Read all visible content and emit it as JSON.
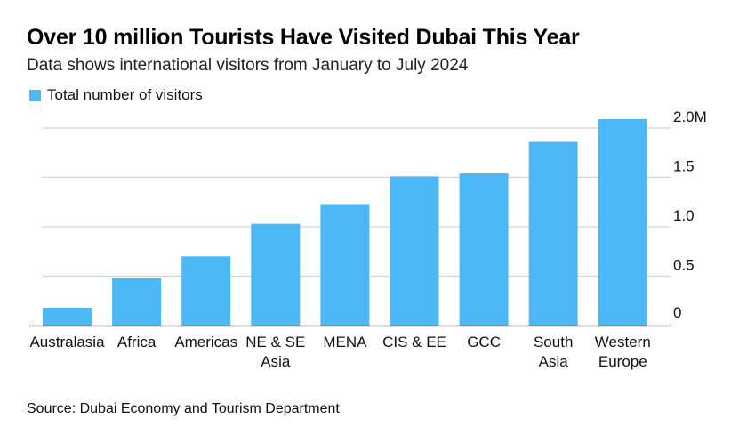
{
  "title": "Over 10 million Tourists Have Visited Dubai This Year",
  "subtitle": "Data shows international visitors from January to July 2024",
  "legend": {
    "label": "Total number of visitors",
    "color": "#4cb8f5"
  },
  "source": "Source: Dubai Economy and Tourism Department",
  "chart_data": {
    "type": "bar",
    "title": "Over 10 million Tourists Have Visited Dubai This Year",
    "subtitle": "Data shows international visitors from January to July 2024",
    "categories": [
      [
        "Australasia"
      ],
      [
        "Africa"
      ],
      [
        "Americas"
      ],
      [
        "NE & SE",
        "Asia"
      ],
      [
        "MENA"
      ],
      [
        "CIS & EE"
      ],
      [
        "GCC"
      ],
      [
        "South",
        "Asia"
      ],
      [
        "Western",
        "Europe"
      ]
    ],
    "series": [
      {
        "name": "Total number of visitors",
        "color": "#4cb8f5",
        "values": [
          0.18,
          0.48,
          0.7,
          1.03,
          1.23,
          1.51,
          1.54,
          1.86,
          2.09
        ]
      }
    ],
    "yunit": "M",
    "ylim": [
      0,
      2.0
    ],
    "yticks": [
      {
        "value": 0,
        "label": "0"
      },
      {
        "value": 0.5,
        "label": "0.5"
      },
      {
        "value": 1.0,
        "label": "1.0"
      },
      {
        "value": 1.5,
        "label": "1.5"
      },
      {
        "value": 2.0,
        "label": "2.0M"
      }
    ],
    "grid": true,
    "yaxis_position": "right",
    "legend_position": "top-left"
  }
}
